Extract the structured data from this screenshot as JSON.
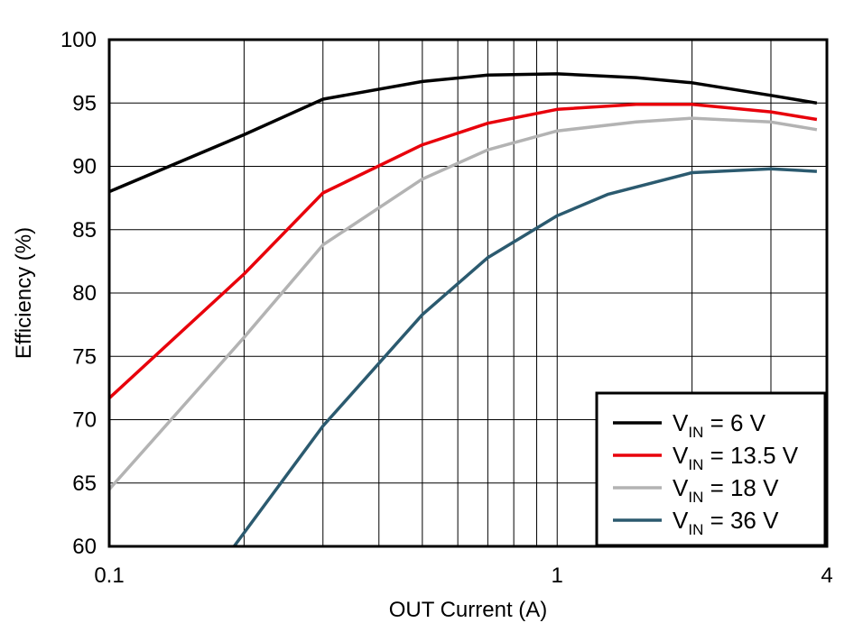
{
  "chart_data": {
    "type": "line",
    "title": "",
    "xlabel": "OUT Current (A)",
    "ylabel": "Efficiency (%)",
    "x_scale": "log",
    "xlim": [
      0.1,
      4
    ],
    "ylim": [
      60,
      100
    ],
    "x_tick_labels": [
      "0.1",
      "1",
      "4"
    ],
    "y_ticks": [
      60,
      65,
      70,
      75,
      80,
      85,
      90,
      95,
      100
    ],
    "grid": true,
    "legend_position": "bottom-right",
    "series": [
      {
        "name": "V_IN = 6 V",
        "legend_main": "V",
        "legend_sub": "IN",
        "legend_rest": " = 6 V",
        "color": "#000000",
        "x": [
          0.1,
          0.2,
          0.3,
          0.5,
          0.7,
          1.0,
          1.5,
          2.0,
          3.0,
          3.8
        ],
        "y": [
          88.0,
          92.5,
          95.3,
          96.7,
          97.2,
          97.3,
          97.0,
          96.6,
          95.6,
          95.0
        ]
      },
      {
        "name": "V_IN = 13.5 V",
        "legend_main": "V",
        "legend_sub": "IN",
        "legend_rest": " = 13.5 V",
        "color": "#e8000b",
        "x": [
          0.1,
          0.2,
          0.3,
          0.5,
          0.7,
          1.0,
          1.5,
          2.0,
          3.0,
          3.8
        ],
        "y": [
          71.7,
          81.5,
          87.9,
          91.7,
          93.4,
          94.5,
          94.9,
          94.9,
          94.3,
          93.7
        ]
      },
      {
        "name": "V_IN = 18 V",
        "legend_main": "V",
        "legend_sub": "IN",
        "legend_rest": " = 18 V",
        "color": "#b3b3b3",
        "x": [
          0.1,
          0.2,
          0.3,
          0.5,
          0.7,
          1.0,
          1.5,
          2.0,
          3.0,
          3.8
        ],
        "y": [
          64.5,
          76.5,
          83.8,
          89.0,
          91.3,
          92.8,
          93.5,
          93.8,
          93.5,
          92.9
        ]
      },
      {
        "name": "V_IN = 36 V",
        "legend_main": "V",
        "legend_sub": "IN",
        "legend_rest": " = 36 V",
        "color": "#2b5a6f",
        "x": [
          0.19,
          0.3,
          0.5,
          0.7,
          1.0,
          1.3,
          2.0,
          3.0,
          3.8
        ],
        "y": [
          60.0,
          69.5,
          78.3,
          82.8,
          86.1,
          87.8,
          89.5,
          89.8,
          89.6
        ]
      }
    ]
  }
}
